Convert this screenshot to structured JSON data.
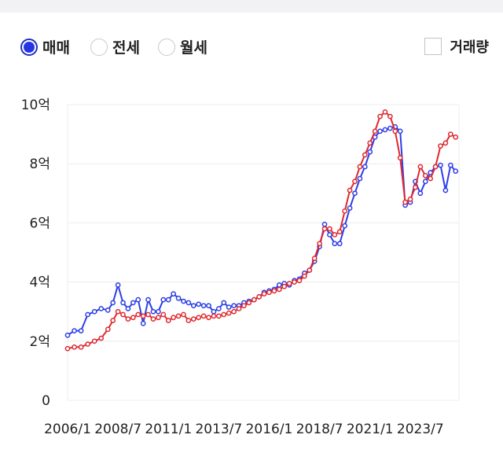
{
  "filters": {
    "options": [
      {
        "label": "매매",
        "selected": true
      },
      {
        "label": "전세",
        "selected": false
      },
      {
        "label": "월세",
        "selected": false
      }
    ],
    "volume_checkbox": {
      "label": "거래량",
      "checked": false
    }
  },
  "colors": {
    "series_blue": "#2d3ee6",
    "series_red": "#e0282e",
    "selected_radio": "#2434e6"
  },
  "chart_data": {
    "type": "line",
    "title": "",
    "xlabel": "",
    "ylabel": "",
    "x_ticks": [
      "2006/1",
      "2008/7",
      "2011/1",
      "2013/7",
      "2016/1",
      "2018/7",
      "2021/1",
      "2023/7"
    ],
    "y_ticks": [
      "0",
      "2억",
      "4억",
      "6억",
      "8억",
      "10억"
    ],
    "y_unit": "억",
    "xlim": [
      "2006-01",
      "2025-06"
    ],
    "ylim": [
      0,
      10
    ],
    "grid": true,
    "series": [
      {
        "color": "#2d3ee6",
        "points": [
          [
            "2006-01",
            2.2
          ],
          [
            "2006-05",
            2.35
          ],
          [
            "2006-09",
            2.35
          ],
          [
            "2007-01",
            2.9
          ],
          [
            "2007-05",
            3.0
          ],
          [
            "2007-09",
            3.1
          ],
          [
            "2008-01",
            3.05
          ],
          [
            "2008-04",
            3.3
          ],
          [
            "2008-07",
            3.9
          ],
          [
            "2008-10",
            3.3
          ],
          [
            "2009-01",
            3.1
          ],
          [
            "2009-04",
            3.3
          ],
          [
            "2009-07",
            3.4
          ],
          [
            "2009-10",
            2.6
          ],
          [
            "2010-01",
            3.4
          ],
          [
            "2010-04",
            3.0
          ],
          [
            "2010-07",
            3.0
          ],
          [
            "2010-10",
            3.4
          ],
          [
            "2011-01",
            3.4
          ],
          [
            "2011-04",
            3.6
          ],
          [
            "2011-07",
            3.45
          ],
          [
            "2011-10",
            3.35
          ],
          [
            "2012-01",
            3.3
          ],
          [
            "2012-04",
            3.2
          ],
          [
            "2012-07",
            3.25
          ],
          [
            "2012-10",
            3.2
          ],
          [
            "2013-01",
            3.2
          ],
          [
            "2013-04",
            3.0
          ],
          [
            "2013-07",
            3.1
          ],
          [
            "2013-10",
            3.3
          ],
          [
            "2014-01",
            3.15
          ],
          [
            "2014-04",
            3.2
          ],
          [
            "2014-07",
            3.2
          ],
          [
            "2014-10",
            3.3
          ],
          [
            "2015-01",
            3.35
          ],
          [
            "2015-04",
            3.4
          ],
          [
            "2015-07",
            3.5
          ],
          [
            "2015-10",
            3.65
          ],
          [
            "2016-01",
            3.7
          ],
          [
            "2016-04",
            3.75
          ],
          [
            "2016-07",
            3.9
          ],
          [
            "2016-10",
            3.95
          ],
          [
            "2017-01",
            3.9
          ],
          [
            "2017-04",
            4.05
          ],
          [
            "2017-07",
            4.1
          ],
          [
            "2017-10",
            4.3
          ],
          [
            "2018-01",
            4.4
          ],
          [
            "2018-04",
            4.7
          ],
          [
            "2018-07",
            5.2
          ],
          [
            "2018-10",
            5.95
          ],
          [
            "2019-01",
            5.6
          ],
          [
            "2019-04",
            5.3
          ],
          [
            "2019-07",
            5.3
          ],
          [
            "2019-10",
            5.9
          ],
          [
            "2020-01",
            6.5
          ],
          [
            "2020-04",
            7.0
          ],
          [
            "2020-07",
            7.5
          ],
          [
            "2020-10",
            7.9
          ],
          [
            "2021-01",
            8.4
          ],
          [
            "2021-04",
            8.9
          ],
          [
            "2021-07",
            9.1
          ],
          [
            "2021-10",
            9.15
          ],
          [
            "2022-01",
            9.2
          ],
          [
            "2022-04",
            9.25
          ],
          [
            "2022-07",
            9.1
          ],
          [
            "2022-10",
            6.6
          ],
          [
            "2023-01",
            6.7
          ],
          [
            "2023-04",
            7.4
          ],
          [
            "2023-07",
            7.0
          ],
          [
            "2023-10",
            7.4
          ],
          [
            "2024-01",
            7.7
          ],
          [
            "2024-04",
            7.9
          ],
          [
            "2024-07",
            7.95
          ],
          [
            "2024-10",
            7.1
          ],
          [
            "2025-01",
            7.95
          ],
          [
            "2025-04",
            7.75
          ]
        ]
      },
      {
        "color": "#e0282e",
        "points": [
          [
            "2006-01",
            1.75
          ],
          [
            "2006-05",
            1.8
          ],
          [
            "2006-09",
            1.8
          ],
          [
            "2007-01",
            1.9
          ],
          [
            "2007-05",
            2.0
          ],
          [
            "2007-09",
            2.1
          ],
          [
            "2008-01",
            2.4
          ],
          [
            "2008-04",
            2.7
          ],
          [
            "2008-07",
            3.0
          ],
          [
            "2008-10",
            2.9
          ],
          [
            "2009-01",
            2.75
          ],
          [
            "2009-04",
            2.8
          ],
          [
            "2009-07",
            2.9
          ],
          [
            "2009-10",
            2.85
          ],
          [
            "2010-01",
            2.9
          ],
          [
            "2010-04",
            2.75
          ],
          [
            "2010-07",
            2.8
          ],
          [
            "2010-10",
            2.9
          ],
          [
            "2011-01",
            2.7
          ],
          [
            "2011-04",
            2.8
          ],
          [
            "2011-07",
            2.85
          ],
          [
            "2011-10",
            2.9
          ],
          [
            "2012-01",
            2.7
          ],
          [
            "2012-04",
            2.75
          ],
          [
            "2012-07",
            2.8
          ],
          [
            "2012-10",
            2.85
          ],
          [
            "2013-01",
            2.8
          ],
          [
            "2013-04",
            2.85
          ],
          [
            "2013-07",
            2.85
          ],
          [
            "2013-10",
            2.9
          ],
          [
            "2014-01",
            2.95
          ],
          [
            "2014-04",
            3.0
          ],
          [
            "2014-07",
            3.1
          ],
          [
            "2014-10",
            3.2
          ],
          [
            "2015-01",
            3.3
          ],
          [
            "2015-04",
            3.4
          ],
          [
            "2015-07",
            3.5
          ],
          [
            "2015-10",
            3.6
          ],
          [
            "2016-01",
            3.65
          ],
          [
            "2016-04",
            3.7
          ],
          [
            "2016-07",
            3.75
          ],
          [
            "2016-10",
            3.85
          ],
          [
            "2017-01",
            3.95
          ],
          [
            "2017-04",
            4.0
          ],
          [
            "2017-07",
            4.05
          ],
          [
            "2017-10",
            4.2
          ],
          [
            "2018-01",
            4.4
          ],
          [
            "2018-04",
            4.8
          ],
          [
            "2018-07",
            5.3
          ],
          [
            "2018-10",
            5.8
          ],
          [
            "2019-01",
            5.8
          ],
          [
            "2019-04",
            5.6
          ],
          [
            "2019-07",
            5.7
          ],
          [
            "2019-10",
            6.4
          ],
          [
            "2020-01",
            7.1
          ],
          [
            "2020-04",
            7.4
          ],
          [
            "2020-07",
            7.9
          ],
          [
            "2020-10",
            8.3
          ],
          [
            "2021-01",
            8.7
          ],
          [
            "2021-04",
            9.1
          ],
          [
            "2021-07",
            9.6
          ],
          [
            "2021-10",
            9.75
          ],
          [
            "2022-01",
            9.6
          ],
          [
            "2022-04",
            9.1
          ],
          [
            "2022-07",
            8.2
          ],
          [
            "2022-10",
            6.7
          ],
          [
            "2023-01",
            6.8
          ],
          [
            "2023-04",
            7.2
          ],
          [
            "2023-07",
            7.9
          ],
          [
            "2023-10",
            7.6
          ],
          [
            "2024-01",
            7.5
          ],
          [
            "2024-04",
            7.9
          ],
          [
            "2024-07",
            8.6
          ],
          [
            "2024-10",
            8.7
          ],
          [
            "2025-01",
            9.0
          ],
          [
            "2025-04",
            8.9
          ]
        ]
      }
    ]
  }
}
